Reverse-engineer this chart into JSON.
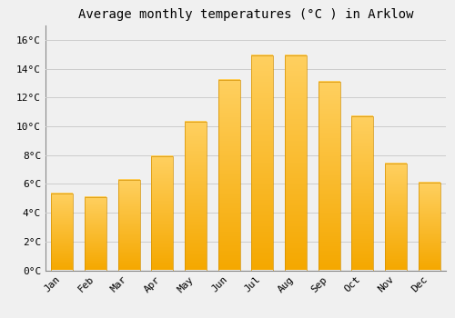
{
  "title": "Average monthly temperatures (°C ) in Arklow",
  "months": [
    "Jan",
    "Feb",
    "Mar",
    "Apr",
    "May",
    "Jun",
    "Jul",
    "Aug",
    "Sep",
    "Oct",
    "Nov",
    "Dec"
  ],
  "values": [
    5.3,
    5.1,
    6.3,
    7.9,
    10.3,
    13.2,
    14.9,
    14.9,
    13.1,
    10.7,
    7.4,
    6.1
  ],
  "bar_color_top": "#FFD060",
  "bar_color_bottom": "#F5A800",
  "bar_edge_color": "#D49000",
  "background_color": "#F0F0F0",
  "grid_color": "#CCCCCC",
  "title_fontsize": 10,
  "tick_fontsize": 8,
  "ytick_labels": [
    "0°C",
    "2°C",
    "4°C",
    "6°C",
    "8°C",
    "10°C",
    "12°C",
    "14°C",
    "16°C"
  ],
  "ytick_values": [
    0,
    2,
    4,
    6,
    8,
    10,
    12,
    14,
    16
  ],
  "ylim": [
    0,
    17
  ],
  "bar_width": 0.65
}
